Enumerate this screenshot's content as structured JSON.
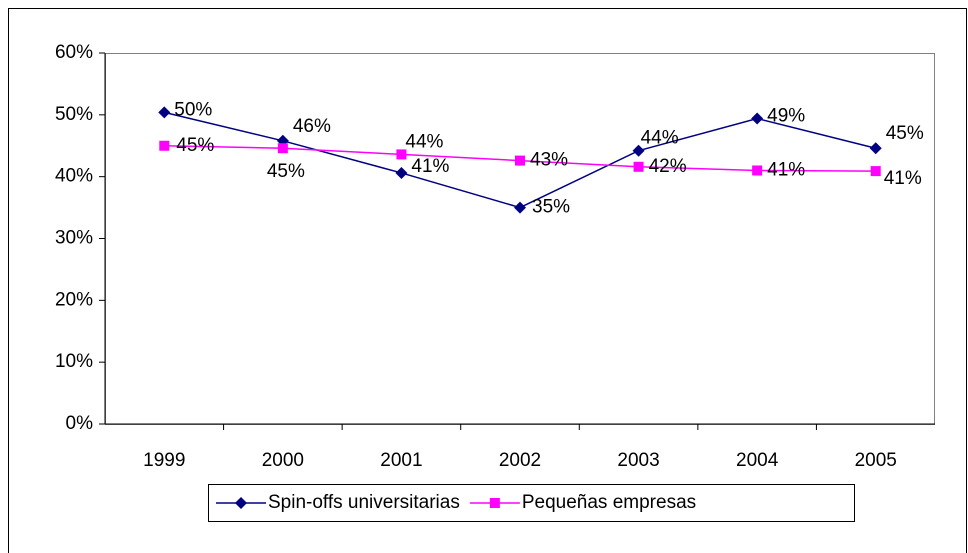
{
  "chart_data": {
    "type": "line",
    "categories": [
      "1999",
      "2000",
      "2001",
      "2002",
      "2003",
      "2004",
      "2005"
    ],
    "series": [
      {
        "name": "Spin-offs universitarias",
        "color": "#000080",
        "marker": "diamond",
        "values": [
          50.4,
          45.8,
          40.6,
          35,
          44.2,
          49.4,
          44.6
        ],
        "value_labels": [
          "50%",
          "46%",
          "41%",
          "35%",
          "44%",
          "49%",
          "45%"
        ]
      },
      {
        "name": "Pequeñas empresas",
        "color": "#ff00ff",
        "marker": "square",
        "values": [
          45,
          44.6,
          43.6,
          42.6,
          41.6,
          41,
          40.9
        ],
        "value_labels": [
          "45%",
          "45%",
          "44%",
          "43%",
          "42%",
          "41%",
          "41%"
        ]
      }
    ],
    "ylim": [
      0,
      60
    ],
    "yticks": [
      {
        "value": 0,
        "label": "0%"
      },
      {
        "value": 10,
        "label": "10%"
      },
      {
        "value": 20,
        "label": "20%"
      },
      {
        "value": 30,
        "label": "30%"
      },
      {
        "value": 40,
        "label": "40%"
      },
      {
        "value": 50,
        "label": "50%"
      },
      {
        "value": 60,
        "label": "60%"
      }
    ],
    "grid": false,
    "legend": "bottom"
  }
}
